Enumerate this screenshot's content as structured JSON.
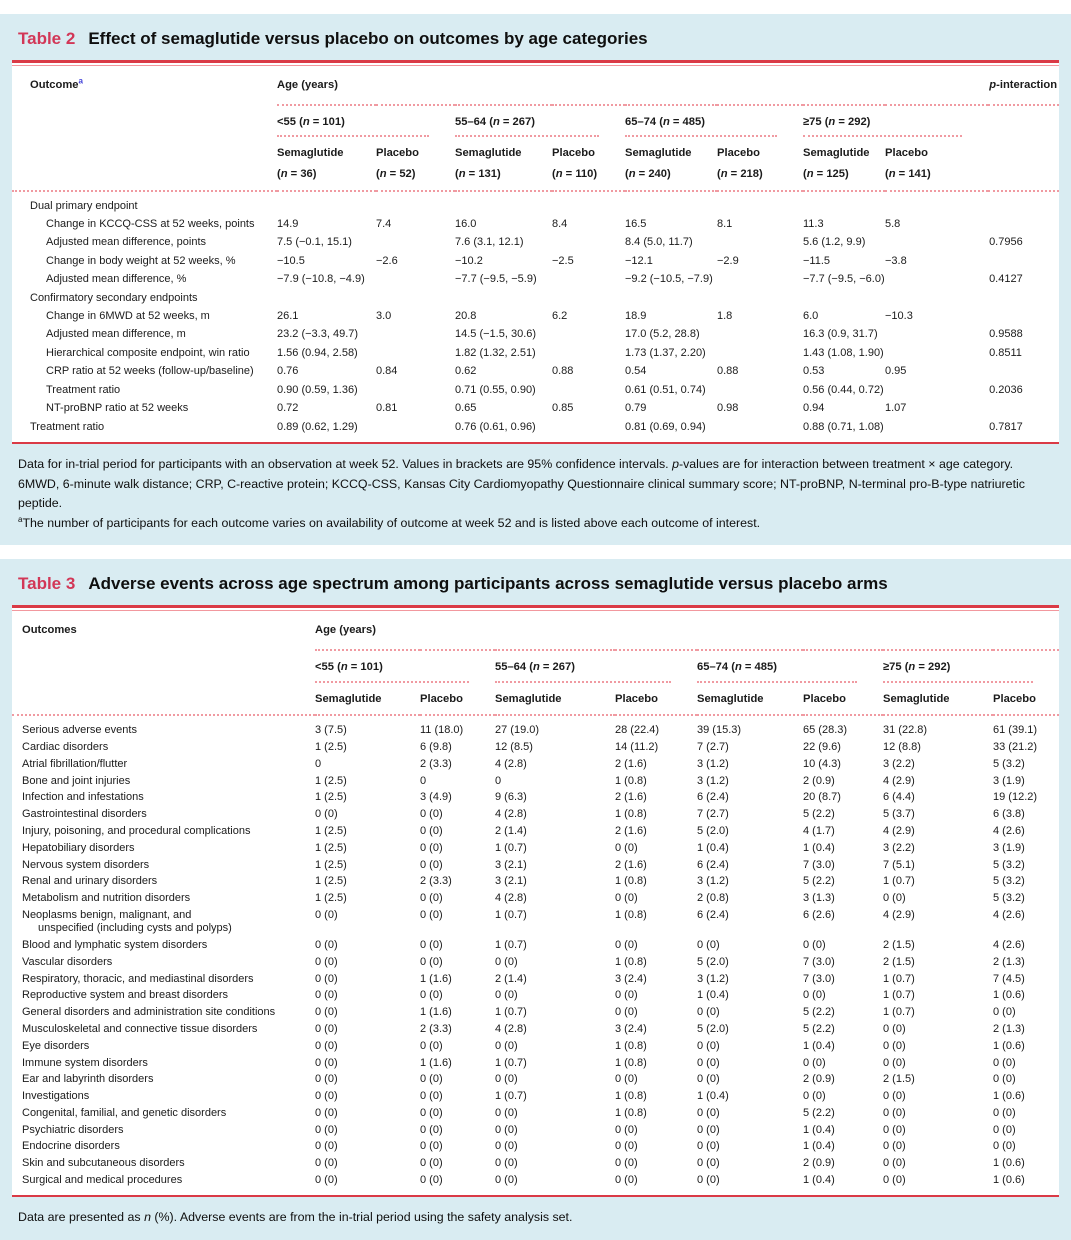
{
  "colors": {
    "panel_bg": "#d9ecf2",
    "rule_red": "#da3a46",
    "dotted_pink": "#f09aa1",
    "title_crimson": "#d23757",
    "footnote_link_blue": "#4343d9"
  },
  "table2": {
    "label": "Table 2",
    "title": "Effect of semaglutide versus placebo on outcomes by age categories",
    "outcome_header": "Outcome",
    "outcome_header_sup": "a",
    "age_header": "Age (years)",
    "p_header": "p-interaction",
    "arm_labels": [
      "Semaglutide",
      "Placebo"
    ],
    "age_groups": [
      {
        "label": "<55",
        "n": "101",
        "arm_ns": [
          "36",
          "52"
        ]
      },
      {
        "label": "55–64",
        "n": "267",
        "arm_ns": [
          "131",
          "110"
        ]
      },
      {
        "label": "65–74",
        "n": "485",
        "arm_ns": [
          "240",
          "218"
        ]
      },
      {
        "label": "≥75",
        "n": "292",
        "arm_ns": [
          "125",
          "141"
        ]
      }
    ],
    "rows": [
      {
        "label": "Dual primary endpoint",
        "section": true
      },
      {
        "label": "Change in KCCQ-CSS at 52 weeks, points",
        "indent": true,
        "values": [
          "14.9",
          "7.4",
          "16.0",
          "8.4",
          "16.5",
          "8.1",
          "11.3",
          "5.8"
        ],
        "p": ""
      },
      {
        "label": "Adjusted mean difference, points",
        "indent": true,
        "values": [
          "7.5 (−0.1, 15.1)",
          "",
          "7.6 (3.1, 12.1)",
          "",
          "8.4 (5.0, 11.7)",
          "",
          "5.6 (1.2, 9.9)",
          ""
        ],
        "p": "0.7956"
      },
      {
        "label": "Change in body weight at 52 weeks, %",
        "indent": true,
        "values": [
          "−10.5",
          "−2.6",
          "−10.2",
          "−2.5",
          "−12.1",
          "−2.9",
          "−11.5",
          "−3.8"
        ],
        "p": ""
      },
      {
        "label": "Adjusted mean difference, %",
        "indent": true,
        "values": [
          "−7.9 (−10.8, −4.9)",
          "",
          "−7.7 (−9.5, −5.9)",
          "",
          "−9.2 (−10.5, −7.9)",
          "",
          "−7.7 (−9.5, −6.0)",
          ""
        ],
        "p": "0.4127"
      },
      {
        "label": "Confirmatory secondary endpoints",
        "section": true
      },
      {
        "label": "Change in 6MWD at 52 weeks, m",
        "indent": true,
        "values": [
          "26.1",
          "3.0",
          "20.8",
          "6.2",
          "18.9",
          "1.8",
          "6.0",
          "−10.3"
        ],
        "p": ""
      },
      {
        "label": "Adjusted mean difference, m",
        "indent": true,
        "values": [
          "23.2 (−3.3, 49.7)",
          "",
          "14.5 (−1.5, 30.6)",
          "",
          "17.0 (5.2, 28.8)",
          "",
          "16.3 (0.9, 31.7)",
          ""
        ],
        "p": "0.9588"
      },
      {
        "label": "Hierarchical composite endpoint, win ratio",
        "indent": true,
        "values": [
          "1.56 (0.94, 2.58)",
          "",
          "1.82 (1.32, 2.51)",
          "",
          "1.73 (1.37, 2.20)",
          "",
          "1.43 (1.08, 1.90)",
          ""
        ],
        "p": "0.8511"
      },
      {
        "label": "CRP ratio at 52 weeks (follow-up/baseline)",
        "indent": true,
        "values": [
          "0.76",
          "0.84",
          "0.62",
          "0.88",
          "0.54",
          "0.88",
          "0.53",
          "0.95"
        ],
        "p": ""
      },
      {
        "label": "Treatment ratio",
        "indent": true,
        "values": [
          "0.90 (0.59, 1.36)",
          "",
          "0.71 (0.55, 0.90)",
          "",
          "0.61 (0.51, 0.74)",
          "",
          "0.56 (0.44, 0.72)",
          ""
        ],
        "p": "0.2036"
      },
      {
        "label": "NT-proBNP ratio at 52 weeks",
        "indent": true,
        "values": [
          "0.72",
          "0.81",
          "0.65",
          "0.85",
          "0.79",
          "0.98",
          "0.94",
          "1.07"
        ],
        "p": ""
      },
      {
        "label": "Treatment ratio",
        "indent": false,
        "values": [
          "0.89 (0.62, 1.29)",
          "",
          "0.76 (0.61, 0.96)",
          "",
          "0.81 (0.69, 0.94)",
          "",
          "0.88 (0.71, 1.08)",
          ""
        ],
        "p": "0.7817"
      }
    ],
    "footnote": {
      "general": "Data for in-trial period for participants with an observation at week 52. Values in brackets are 95% confidence intervals. p-values are for interaction between treatment × age category. 6MWD, 6-minute walk distance; CRP, C-reactive protein; KCCQ-CSS, Kansas City Cardiomyopathy Questionnaire clinical summary score; NT-proBNP, N-terminal pro-B-type natriuretic peptide.",
      "note_a_sup": "a",
      "note_a": "The number of participants for each outcome varies on availability of outcome at week 52 and is listed above each outcome of interest."
    }
  },
  "table3": {
    "label": "Table 3",
    "title": "Adverse events across age spectrum among participants across semaglutide versus placebo arms",
    "outcome_header": "Outcomes",
    "age_header": "Age (years)",
    "arm_labels": [
      "Semaglutide",
      "Placebo"
    ],
    "age_groups": [
      {
        "label": "<55",
        "n": "101"
      },
      {
        "label": "55–64",
        "n": "267"
      },
      {
        "label": "65–74",
        "n": "485"
      },
      {
        "label": "≥75",
        "n": "292"
      }
    ],
    "rows": [
      {
        "label": "Serious adverse events",
        "values": [
          "3 (7.5)",
          "11 (18.0)",
          "27 (19.0)",
          "28 (22.4)",
          "39 (15.3)",
          "65 (28.3)",
          "31 (22.8)",
          "61 (39.1)"
        ]
      },
      {
        "label": "Cardiac disorders",
        "values": [
          "1 (2.5)",
          "6 (9.8)",
          "12 (8.5)",
          "14 (11.2)",
          "7 (2.7)",
          "22 (9.6)",
          "12 (8.8)",
          "33 (21.2)"
        ]
      },
      {
        "label": "Atrial fibrillation/flutter",
        "values": [
          "0",
          "2 (3.3)",
          "4 (2.8)",
          "2 (1.6)",
          "3 (1.2)",
          "10 (4.3)",
          "3 (2.2)",
          "5 (3.2)"
        ]
      },
      {
        "label": "Bone and joint injuries",
        "values": [
          "1 (2.5)",
          "0",
          "0",
          "1 (0.8)",
          "3 (1.2)",
          "2 (0.9)",
          "4 (2.9)",
          "3 (1.9)"
        ]
      },
      {
        "label": "Infection and infestations",
        "values": [
          "1 (2.5)",
          "3 (4.9)",
          "9 (6.3)",
          "2 (1.6)",
          "6 (2.4)",
          "20 (8.7)",
          "6 (4.4)",
          "19 (12.2)"
        ]
      },
      {
        "label": "Gastrointestinal disorders",
        "values": [
          "0 (0)",
          "0 (0)",
          "4 (2.8)",
          "1 (0.8)",
          "7 (2.7)",
          "5 (2.2)",
          "5 (3.7)",
          "6 (3.8)"
        ]
      },
      {
        "label": "Injury, poisoning, and procedural complications",
        "values": [
          "1 (2.5)",
          "0 (0)",
          "2 (1.4)",
          "2 (1.6)",
          "5 (2.0)",
          "4 (1.7)",
          "4 (2.9)",
          "4 (2.6)"
        ]
      },
      {
        "label": "Hepatobiliary disorders",
        "values": [
          "1 (2.5)",
          "0 (0)",
          "1 (0.7)",
          "0 (0)",
          "1 (0.4)",
          "1 (0.4)",
          "3 (2.2)",
          "3 (1.9)"
        ]
      },
      {
        "label": "Nervous system disorders",
        "values": [
          "1 (2.5)",
          "0 (0)",
          "3 (2.1)",
          "2 (1.6)",
          "6 (2.4)",
          "7 (3.0)",
          "7 (5.1)",
          "5 (3.2)"
        ]
      },
      {
        "label": "Renal and urinary disorders",
        "values": [
          "1 (2.5)",
          "2 (3.3)",
          "3 (2.1)",
          "1 (0.8)",
          "3 (1.2)",
          "5 (2.2)",
          "1 (0.7)",
          "5 (3.2)"
        ]
      },
      {
        "label": "Metabolism and nutrition disorders",
        "values": [
          "1 (2.5)",
          "0 (0)",
          "4 (2.8)",
          "0 (0)",
          "2 (0.8)",
          "3 (1.3)",
          "0 (0)",
          "5 (3.2)"
        ]
      },
      {
        "label": "Neoplasms benign, malignant, and",
        "label2": "unspecified (including cysts and polyps)",
        "values": [
          "0 (0)",
          "0 (0)",
          "1 (0.7)",
          "1 (0.8)",
          "6 (2.4)",
          "6 (2.6)",
          "4 (2.9)",
          "4 (2.6)"
        ]
      },
      {
        "label": "Blood and lymphatic system disorders",
        "values": [
          "0 (0)",
          "0 (0)",
          "1 (0.7)",
          "0 (0)",
          "0 (0)",
          "0 (0)",
          "2 (1.5)",
          "4 (2.6)"
        ]
      },
      {
        "label": "Vascular disorders",
        "values": [
          "0 (0)",
          "0 (0)",
          "0 (0)",
          "1 (0.8)",
          "5 (2.0)",
          "7 (3.0)",
          "2 (1.5)",
          "2 (1.3)"
        ]
      },
      {
        "label": "Respiratory, thoracic, and mediastinal disorders",
        "values": [
          "0 (0)",
          "1 (1.6)",
          "2 (1.4)",
          "3 (2.4)",
          "3 (1.2)",
          "7 (3.0)",
          "1 (0.7)",
          "7 (4.5)"
        ]
      },
      {
        "label": "Reproductive system and breast disorders",
        "values": [
          "0 (0)",
          "0 (0)",
          "0 (0)",
          "0 (0)",
          "1 (0.4)",
          "0 (0)",
          "1 (0.7)",
          "1 (0.6)"
        ]
      },
      {
        "label": "General disorders and administration site conditions",
        "values": [
          "0 (0)",
          "1 (1.6)",
          "1 (0.7)",
          "0 (0)",
          "0 (0)",
          "5 (2.2)",
          "1 (0.7)",
          "0 (0)"
        ]
      },
      {
        "label": "Musculoskeletal and connective tissue disorders",
        "values": [
          "0 (0)",
          "2 (3.3)",
          "4 (2.8)",
          "3 (2.4)",
          "5 (2.0)",
          "5 (2.2)",
          "0 (0)",
          "2 (1.3)"
        ]
      },
      {
        "label": "Eye disorders",
        "values": [
          "0 (0)",
          "0 (0)",
          "0 (0)",
          "1 (0.8)",
          "0 (0)",
          "1 (0.4)",
          "0 (0)",
          "1 (0.6)"
        ]
      },
      {
        "label": "Immune system disorders",
        "values": [
          "0 (0)",
          "1 (1.6)",
          "1 (0.7)",
          "1 (0.8)",
          "0 (0)",
          "0 (0)",
          "0 (0)",
          "0 (0)"
        ]
      },
      {
        "label": "Ear and labyrinth disorders",
        "values": [
          "0 (0)",
          "0 (0)",
          "0 (0)",
          "0 (0)",
          "0 (0)",
          "2 (0.9)",
          "2 (1.5)",
          "0 (0)"
        ]
      },
      {
        "label": "Investigations",
        "values": [
          "0 (0)",
          "0 (0)",
          "1 (0.7)",
          "1 (0.8)",
          "1 (0.4)",
          "0 (0)",
          "0 (0)",
          "1 (0.6)"
        ]
      },
      {
        "label": "Congenital, familial, and genetic disorders",
        "values": [
          "0 (0)",
          "0 (0)",
          "0 (0)",
          "1 (0.8)",
          "0 (0)",
          "5 (2.2)",
          "0 (0)",
          "0 (0)"
        ]
      },
      {
        "label": "Psychiatric disorders",
        "values": [
          "0 (0)",
          "0 (0)",
          "0 (0)",
          "0 (0)",
          "0 (0)",
          "1 (0.4)",
          "0 (0)",
          "0 (0)"
        ]
      },
      {
        "label": "Endocrine disorders",
        "values": [
          "0 (0)",
          "0 (0)",
          "0 (0)",
          "0 (0)",
          "0 (0)",
          "1 (0.4)",
          "0 (0)",
          "0 (0)"
        ]
      },
      {
        "label": "Skin and subcutaneous disorders",
        "values": [
          "0 (0)",
          "0 (0)",
          "0 (0)",
          "0 (0)",
          "0 (0)",
          "2 (0.9)",
          "0 (0)",
          "1 (0.6)"
        ]
      },
      {
        "label": "Surgical and medical procedures",
        "values": [
          "0 (0)",
          "0 (0)",
          "0 (0)",
          "0 (0)",
          "0 (0)",
          "1 (0.4)",
          "0 (0)",
          "1 (0.6)"
        ]
      }
    ],
    "footnote": {
      "general": "Data are presented as n (%). Adverse events are from the in-trial period using the safety analysis set."
    }
  }
}
